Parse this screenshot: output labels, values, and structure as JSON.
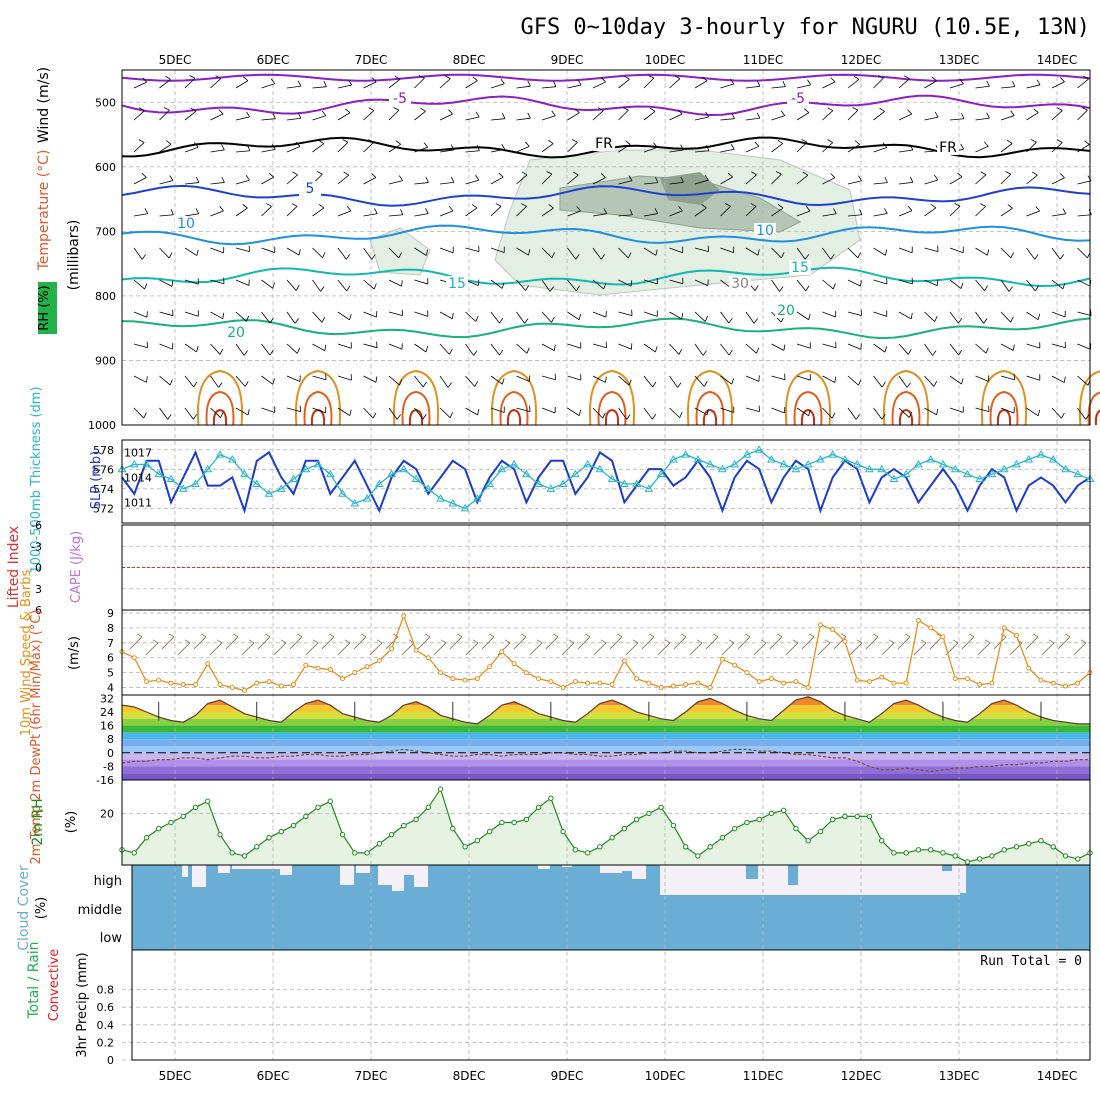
{
  "title": "GFS 0~10day 3-hourly for NGURU (10.5E, 13N)",
  "colors": {
    "temp": "#e05a2b",
    "rh": "#22b24c",
    "wind_label": "#000000",
    "purple": "#8a1fc4",
    "blue": "#2040d0",
    "lightblue": "#1e90e0",
    "cyan": "#10b8b0",
    "green": "#18b080",
    "orange": "#e09020",
    "slp": "#1c3ccc",
    "thickness": "#28b8c8",
    "cape": "#c070e0",
    "lifted": "#e03030",
    "wind10": "#e8901c",
    "cloud": "#6aaed6",
    "dewpt": "#8a6acc",
    "rh2m": "#208a20",
    "precip_total": "#22b24c",
    "precip_conv": "#e02020"
  },
  "chart_data": [
    {
      "type": "line",
      "panel": "upper-air",
      "x": [
        "5DEC",
        "6DEC",
        "7DEC",
        "8DEC",
        "9DEC",
        "10DEC",
        "11DEC",
        "12DEC",
        "13DEC",
        "14DEC"
      ],
      "ylabel_wind": "Wind (m/s)",
      "ylabel_temp": "Temperature (°C)",
      "ylabel_rh": "RH (%)",
      "ylabel_pressure": "(millibars)",
      "yticks": [
        "500",
        "600",
        "700",
        "800",
        "900",
        "1000"
      ],
      "contour_labels": [
        "-5",
        "-5",
        "FR",
        "FR",
        "5",
        "10",
        "10",
        "15",
        "15",
        "20",
        "20",
        "30"
      ],
      "series": [
        {
          "name": "-5",
          "color": "purple",
          "level_mb": 505
        },
        {
          "name": "FR",
          "color": "black",
          "level_mb": 570
        },
        {
          "name": "5",
          "color": "blue",
          "level_mb": 645
        },
        {
          "name": "10",
          "color": "lightblue",
          "level_mb": 705
        },
        {
          "name": "15",
          "color": "cyan",
          "level_mb": 770
        },
        {
          "name": "20",
          "color": "green",
          "level_mb": 850
        }
      ]
    },
    {
      "type": "line",
      "panel": "slp-thickness",
      "ylabel_left": "1000-500mb Thickness (dm)",
      "ylabel_right": "SLP (mb)",
      "yticks_left": [
        "572",
        "574",
        "576",
        "578"
      ],
      "yticks_right": [
        "1011",
        "1014",
        "1017"
      ],
      "slp": [
        1014,
        1012,
        1016,
        1016,
        1011,
        1014,
        1017,
        1013,
        1013,
        1014,
        1010,
        1016,
        1017,
        1014,
        1012,
        1016,
        1016,
        1012,
        1014,
        1016,
        1013,
        1010,
        1014,
        1016,
        1015,
        1012,
        1014,
        1016,
        1015,
        1011,
        1014,
        1016,
        1015,
        1011,
        1014,
        1016,
        1016,
        1012,
        1014,
        1017,
        1016,
        1011,
        1013,
        1015,
        1015,
        1013,
        1014,
        1016,
        1014,
        1010,
        1014,
        1016,
        1015,
        1011,
        1014,
        1016,
        1015,
        1010,
        1014,
        1016,
        1015,
        1011,
        1014,
        1015,
        1014,
        1011,
        1013,
        1015,
        1013,
        1010,
        1013,
        1015,
        1014,
        1010,
        1013,
        1014,
        1013,
        1011,
        1013,
        1014
      ],
      "thickness": [
        576,
        576.5,
        576.5,
        575.5,
        575,
        574,
        574.5,
        576,
        577.5,
        577,
        575.5,
        574.5,
        573.5,
        574,
        575,
        576,
        576.5,
        575.5,
        573.5,
        572.5,
        573,
        574.5,
        575.5,
        576,
        575,
        574,
        573,
        572.5,
        572,
        573,
        574.5,
        576,
        576.5,
        575.5,
        574.5,
        574,
        574.5,
        575.5,
        576.5,
        576,
        575,
        574.5,
        574.5,
        574,
        575.5,
        577,
        577.5,
        577,
        576.5,
        576,
        576.5,
        577.5,
        578,
        577,
        576.5,
        576,
        576.5,
        577,
        577.5,
        577,
        576.5,
        576,
        576,
        575,
        575.5,
        576.5,
        577,
        576.5,
        576,
        575.5,
        575,
        575.5,
        576,
        576.5,
        577,
        577.5,
        577,
        576,
        575.5,
        575
      ]
    },
    {
      "type": "line",
      "panel": "cape-li",
      "ylabel_left": "Lifted Index",
      "ylabel_right": "CAPE (J/kg)",
      "yticks": [
        "-6",
        "-3",
        "0",
        "3",
        "6"
      ],
      "lifted_index": 0
    },
    {
      "type": "line",
      "panel": "wind10",
      "ylabel": "10m Wind Speed & Barbs",
      "yunit": "(m/s)",
      "yticks": [
        "4",
        "5",
        "6",
        "7",
        "8",
        "9"
      ],
      "ylim": [
        3.5,
        9.2
      ],
      "values": [
        6.4,
        6.0,
        4.4,
        4.5,
        4.3,
        4.2,
        4.2,
        5.6,
        4.2,
        4.0,
        3.8,
        4.3,
        4.4,
        4.1,
        4.2,
        5.5,
        5.3,
        5.2,
        4.6,
        5.0,
        5.4,
        5.8,
        6.6,
        8.8,
        6.5,
        6.0,
        5.0,
        4.6,
        4.5,
        4.6,
        5.4,
        6.4,
        5.6,
        5.0,
        4.6,
        4.4,
        4.0,
        4.4,
        4.3,
        4.3,
        4.2,
        5.8,
        4.6,
        4.3,
        4.0,
        4.1,
        4.2,
        4.3,
        4.0,
        5.9,
        5.5,
        5.0,
        4.4,
        4.6,
        4.3,
        4.4,
        4.0,
        8.2,
        7.9,
        7.1,
        4.5,
        4.4,
        4.7,
        4.3,
        4.3,
        8.5,
        8.0,
        7.4,
        4.6,
        4.6,
        4.2,
        4.3,
        8.0,
        7.5,
        5.3,
        4.5,
        4.3,
        4.1,
        4.3,
        5.0
      ]
    },
    {
      "type": "area",
      "panel": "temp-dewpt",
      "ylabel": "2m Temp 2m DewPt (6hr Min/Max) (°C)",
      "yticks": [
        "-16",
        "-8",
        "0",
        "8",
        "16",
        "24",
        "32"
      ],
      "ylim": [
        -16,
        34
      ],
      "temp": [
        28,
        27,
        24,
        21,
        19,
        18,
        22,
        29,
        31,
        27,
        23,
        21,
        19,
        18,
        24,
        29,
        31,
        28,
        23,
        21,
        19,
        18,
        22,
        28,
        30,
        27,
        22,
        20,
        18,
        17,
        22,
        28,
        30,
        27,
        23,
        21,
        19,
        18,
        23,
        29,
        31,
        28,
        24,
        22,
        20,
        19,
        24,
        30,
        32,
        29,
        25,
        22,
        20,
        19,
        25,
        31,
        33,
        30,
        25,
        22,
        20,
        18,
        23,
        29,
        31,
        28,
        24,
        21,
        19,
        18,
        23,
        29,
        31,
        28,
        24,
        21,
        19,
        18,
        17,
        17
      ],
      "dewpt": [
        -6,
        -5,
        -5,
        -4,
        -4,
        -3,
        -3,
        -4,
        -3,
        -2,
        -2,
        -3,
        -3,
        -2,
        -2,
        -1,
        -1,
        -2,
        -2,
        -1,
        -1,
        0,
        1,
        2,
        1,
        0,
        -1,
        -2,
        -2,
        -1,
        -1,
        -2,
        -1,
        -1,
        -1,
        0,
        0,
        -1,
        -1,
        -2,
        -2,
        -1,
        -1,
        0,
        0,
        1,
        1,
        0,
        0,
        1,
        2,
        2,
        1,
        1,
        0,
        -1,
        -1,
        -2,
        -3,
        -3,
        -5,
        -8,
        -10,
        -10,
        -9,
        -10,
        -11,
        -10,
        -9,
        -9,
        -8,
        -8,
        -7,
        -7,
        -6,
        -6,
        -5,
        -5,
        -4,
        -4
      ]
    },
    {
      "type": "area",
      "panel": "rh2m",
      "ylabel": "2m RH",
      "yunit": "(%)",
      "yticks": [
        "20"
      ],
      "ylim": [
        3,
        31
      ],
      "values": [
        8,
        7,
        12,
        15,
        17,
        19,
        22,
        24,
        13,
        7,
        6,
        9,
        12,
        14,
        16,
        19,
        22,
        24,
        13,
        7,
        7,
        10,
        13,
        16,
        18,
        22,
        28,
        15,
        9,
        11,
        14,
        17,
        17,
        18,
        22,
        25,
        14,
        8,
        7,
        9,
        12,
        15,
        18,
        20,
        22,
        16,
        9,
        6,
        9,
        12,
        15,
        17,
        18,
        20,
        21,
        15,
        11,
        14,
        18,
        19,
        19,
        19,
        11,
        7,
        7,
        8,
        8,
        7,
        6,
        4,
        5,
        6,
        8,
        9,
        10,
        11,
        9,
        6,
        5,
        7
      ]
    },
    {
      "type": "bar",
      "panel": "cloud",
      "ylabel": "Cloud Cover",
      "yunit": "(%)",
      "yticks": [
        "high",
        "middle",
        "low"
      ]
    },
    {
      "type": "bar",
      "panel": "precip",
      "ylabel_left": "Total / Rain",
      "ylabel_left2": "Convective",
      "ylabel": "3hr Precip (mm)",
      "yticks": [
        "0",
        "0.2",
        "0.4",
        "0.6",
        "0.8"
      ],
      "ylim": [
        0,
        1
      ],
      "values": [],
      "run_total": "Run Total = 0"
    }
  ]
}
